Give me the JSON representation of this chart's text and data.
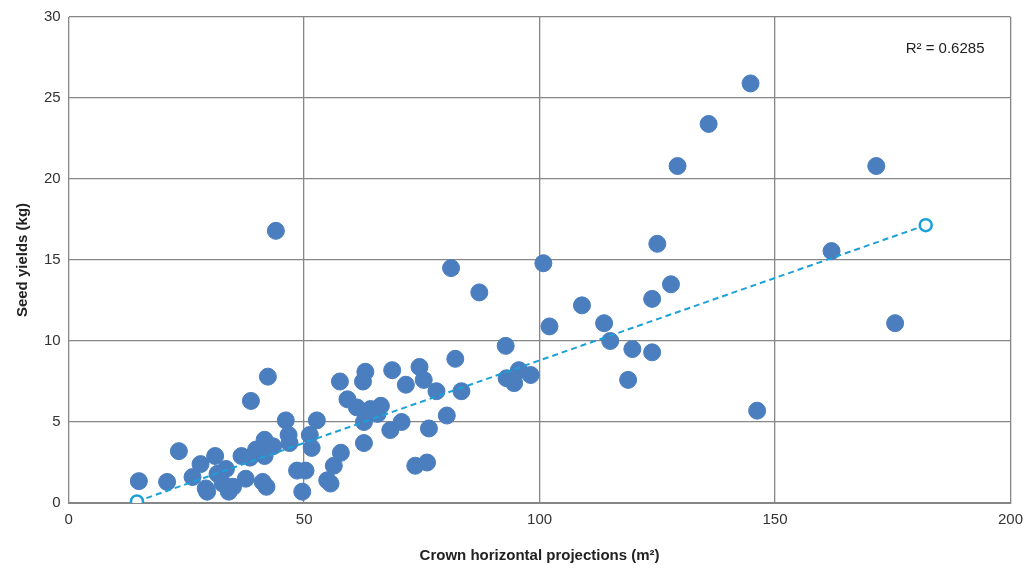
{
  "chart_data": {
    "type": "scatter",
    "xlabel": "Crown horizontal projections (m²)",
    "ylabel": "Seed yields (kg)",
    "xlim": [
      0,
      200
    ],
    "xticks": [
      0,
      50,
      100,
      150,
      200
    ],
    "ylim": [
      0,
      30
    ],
    "yticks": [
      0,
      5,
      10,
      15,
      20,
      25,
      30
    ],
    "grid": true,
    "legend": false,
    "marker": "circle",
    "annotations": [
      "R² = 0.6285"
    ],
    "series": [
      {
        "color": "#4a7ebf",
        "x": [
          14.9,
          20.9,
          23.4,
          26.3,
          28.0,
          29.1,
          29.4,
          31.1,
          31.6,
          32.7,
          33.4,
          34.0,
          34.9,
          36.7,
          37.6,
          38.5,
          38.7,
          39.8,
          41.2,
          41.6,
          41.6,
          42.0,
          42.3,
          43.4,
          44.0,
          46.1,
          46.7,
          46.9,
          48.5,
          49.6,
          50.3,
          51.2,
          51.6,
          52.7,
          54.9,
          55.6,
          56.3,
          57.6,
          57.8,
          59.2,
          61.2,
          62.7,
          62.7,
          63.0,
          62.5,
          64.1,
          65.6,
          66.3,
          68.3,
          68.7,
          70.7,
          71.6,
          73.6,
          74.5,
          75.4,
          76.1,
          76.5,
          78.1,
          80.3,
          81.2,
          82.1,
          83.4,
          87.2,
          92.8,
          93.0,
          94.6,
          95.6,
          98.1,
          100.8,
          102.1,
          109.0,
          113.7,
          115.0,
          118.8,
          119.7,
          123.9,
          123.9,
          125.0,
          127.9,
          129.3,
          135.9,
          144.8,
          146.2,
          162.0,
          171.5,
          175.5
        ],
        "values": [
          1.35,
          1.3,
          3.2,
          1.6,
          2.4,
          0.9,
          0.7,
          2.9,
          1.8,
          1.2,
          2.1,
          0.7,
          1.0,
          2.9,
          1.5,
          2.8,
          6.3,
          3.3,
          1.3,
          2.9,
          3.9,
          1.0,
          7.8,
          3.5,
          16.8,
          5.1,
          4.2,
          3.7,
          2.0,
          0.7,
          2.0,
          4.2,
          3.4,
          5.1,
          1.4,
          1.2,
          2.3,
          7.5,
          3.1,
          6.4,
          5.9,
          5.0,
          3.7,
          8.1,
          7.5,
          5.8,
          5.5,
          6.0,
          4.5,
          8.2,
          5.0,
          7.3,
          2.3,
          8.4,
          7.6,
          2.5,
          4.6,
          6.9,
          5.4,
          14.5,
          8.9,
          6.9,
          13.0,
          9.7,
          7.7,
          7.4,
          8.2,
          7.9,
          14.8,
          10.9,
          12.2,
          11.1,
          10.0,
          7.6,
          9.5,
          9.3,
          12.6,
          16.0,
          13.5,
          20.8,
          23.4,
          25.9,
          5.7,
          15.55,
          20.8,
          11.1
        ]
      },
      {
        "type": "line",
        "color": "#1ba1d8",
        "line_style": "dashed",
        "x": [
          14.5,
          182
        ],
        "values": [
          0.1,
          17.15
        ]
      }
    ]
  }
}
